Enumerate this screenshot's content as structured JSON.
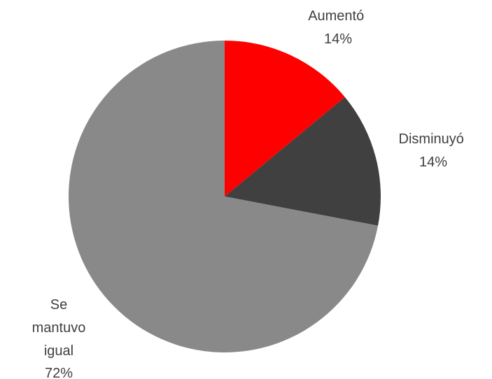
{
  "chart_data": {
    "type": "pie",
    "title": "",
    "slices": [
      {
        "label": "Aumentó",
        "value": 14,
        "display": "14%",
        "color": "#FF0000"
      },
      {
        "label": "Disminuyó",
        "value": 14,
        "display": "14%",
        "color": "#404040"
      },
      {
        "label": "Se mantuvo igual",
        "value": 72,
        "display": "72%",
        "color": "#898989"
      }
    ],
    "legend": "none"
  }
}
